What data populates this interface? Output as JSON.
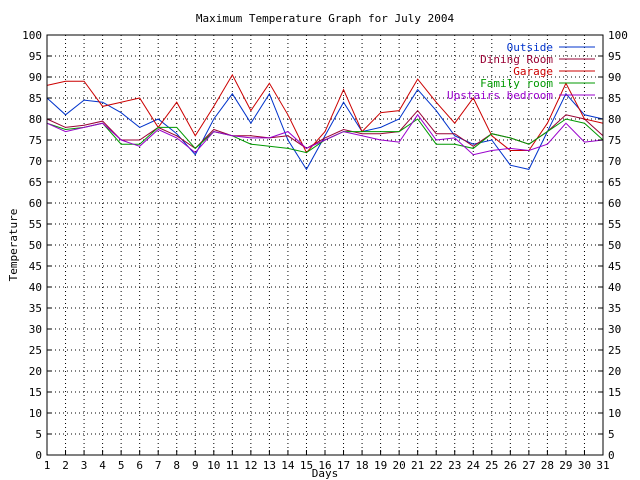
{
  "chart_data": {
    "type": "line",
    "title": "Maximum Temperature Graph for July 2004",
    "xlabel": "Days",
    "ylabel": "Temperature",
    "xlim": [
      1,
      31
    ],
    "ylim": [
      0,
      100
    ],
    "y_tick_step": 5,
    "grid": true,
    "grid_style": "dotted",
    "legend_position": "top-right",
    "mirror_y_axis_right": true,
    "x": [
      1,
      2,
      3,
      4,
      5,
      6,
      7,
      8,
      9,
      10,
      11,
      12,
      13,
      14,
      15,
      16,
      17,
      18,
      19,
      20,
      21,
      22,
      23,
      24,
      25,
      26,
      27,
      28,
      29,
      30,
      31
    ],
    "series": [
      {
        "name": "Outside",
        "color": "#0033cc",
        "values": [
          85,
          81,
          84.5,
          84,
          81.5,
          78,
          80,
          76.5,
          71.5,
          80,
          86,
          79,
          86,
          75,
          68,
          76,
          84,
          77,
          78,
          80,
          87,
          82,
          76,
          74,
          75,
          69,
          68,
          77,
          86,
          81,
          80
        ]
      },
      {
        "name": "Dining Room",
        "color": "#990033",
        "values": [
          80,
          78,
          78.5,
          79.5,
          75,
          75,
          78,
          76,
          73,
          77.5,
          76,
          76,
          75.5,
          76,
          73,
          75.5,
          77.5,
          76.5,
          76.5,
          77,
          82,
          76.5,
          76.5,
          73.5,
          76.5,
          75.5,
          74,
          77,
          81,
          80,
          76
        ]
      },
      {
        "name": "Garage",
        "color": "#cc0000",
        "values": [
          88,
          89,
          89,
          83,
          84,
          85,
          78,
          84,
          76,
          83,
          90.5,
          82,
          88.5,
          81,
          72,
          77,
          87,
          77,
          81.5,
          82,
          89.5,
          84,
          79,
          85,
          76,
          72.5,
          72.5,
          79,
          88.5,
          80,
          79
        ]
      },
      {
        "name": "Family room",
        "color": "#009900",
        "values": [
          79,
          77.5,
          78,
          79,
          74,
          74,
          78,
          78,
          73,
          77,
          76,
          74,
          73.5,
          73,
          72,
          75,
          77,
          77,
          77,
          77,
          80,
          74,
          74,
          73,
          76.5,
          75.5,
          74,
          77,
          80,
          79,
          75
        ]
      },
      {
        "name": "Upstairs bedroom",
        "color": "#9900cc",
        "values": [
          79,
          77,
          78,
          79,
          75,
          73.5,
          77.5,
          75.5,
          72,
          77,
          76,
          75.5,
          75.5,
          77,
          73,
          75,
          77,
          76,
          75,
          74.5,
          81,
          75,
          75.5,
          71.5,
          72.5,
          73,
          72.5,
          74,
          79,
          74.5,
          75
        ]
      }
    ]
  }
}
